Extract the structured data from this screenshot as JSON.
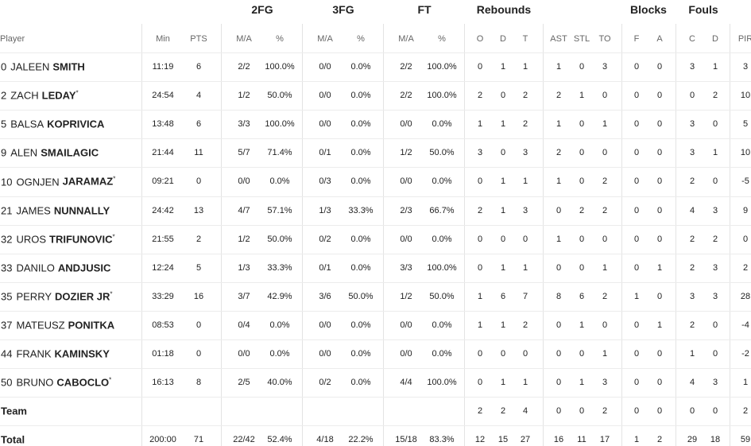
{
  "headers": {
    "groups": [
      "2FG",
      "3FG",
      "FT",
      "Rebounds",
      "Blocks",
      "Fouls"
    ],
    "player": "Player",
    "columns": [
      "Min",
      "PTS",
      "M/A",
      "%",
      "M/A",
      "%",
      "M/A",
      "%",
      "O",
      "D",
      "T",
      "AST",
      "STL",
      "TO",
      "F",
      "A",
      "C",
      "D",
      "PIR"
    ]
  },
  "rows": [
    {
      "number": "0",
      "first": "JALEEN",
      "last": "SMITH",
      "cells": [
        "11:19",
        "6",
        "2/2",
        "100.0%",
        "0/0",
        "0.0%",
        "2/2",
        "100.0%",
        "0",
        "1",
        "1",
        "1",
        "0",
        "3",
        "0",
        "0",
        "3",
        "1",
        "3"
      ]
    },
    {
      "number": "2",
      "first": "ZACH",
      "last": "LEDAY",
      "mark": "*",
      "cells": [
        "24:54",
        "4",
        "1/2",
        "50.0%",
        "0/0",
        "0.0%",
        "2/2",
        "100.0%",
        "2",
        "0",
        "2",
        "2",
        "1",
        "0",
        "0",
        "0",
        "0",
        "2",
        "10"
      ]
    },
    {
      "number": "5",
      "first": "BALSA",
      "last": "KOPRIVICA",
      "cells": [
        "13:48",
        "6",
        "3/3",
        "100.0%",
        "0/0",
        "0.0%",
        "0/0",
        "0.0%",
        "1",
        "1",
        "2",
        "1",
        "0",
        "1",
        "0",
        "0",
        "3",
        "0",
        "5"
      ]
    },
    {
      "number": "9",
      "first": "ALEN",
      "last": "SMAILAGIC",
      "cells": [
        "21:44",
        "11",
        "5/7",
        "71.4%",
        "0/1",
        "0.0%",
        "1/2",
        "50.0%",
        "3",
        "0",
        "3",
        "2",
        "0",
        "0",
        "0",
        "0",
        "3",
        "1",
        "10"
      ]
    },
    {
      "number": "10",
      "first": "OGNJEN",
      "last": "JARAMAZ",
      "mark": "*",
      "cells": [
        "09:21",
        "0",
        "0/0",
        "0.0%",
        "0/3",
        "0.0%",
        "0/0",
        "0.0%",
        "0",
        "1",
        "1",
        "1",
        "0",
        "2",
        "0",
        "0",
        "2",
        "0",
        "-5"
      ]
    },
    {
      "number": "21",
      "first": "JAMES",
      "last": "NUNNALLY",
      "cells": [
        "24:42",
        "13",
        "4/7",
        "57.1%",
        "1/3",
        "33.3%",
        "2/3",
        "66.7%",
        "2",
        "1",
        "3",
        "0",
        "2",
        "2",
        "0",
        "0",
        "4",
        "3",
        "9"
      ]
    },
    {
      "number": "32",
      "first": "UROS",
      "last": "TRIFUNOVIC",
      "mark": "*",
      "cells": [
        "21:55",
        "2",
        "1/2",
        "50.0%",
        "0/2",
        "0.0%",
        "0/0",
        "0.0%",
        "0",
        "0",
        "0",
        "1",
        "0",
        "0",
        "0",
        "0",
        "2",
        "2",
        "0"
      ]
    },
    {
      "number": "33",
      "first": "DANILO",
      "last": "ANDJUSIC",
      "cells": [
        "12:24",
        "5",
        "1/3",
        "33.3%",
        "0/1",
        "0.0%",
        "3/3",
        "100.0%",
        "0",
        "1",
        "1",
        "0",
        "0",
        "1",
        "0",
        "1",
        "2",
        "3",
        "2"
      ]
    },
    {
      "number": "35",
      "first": "PERRY",
      "last": "DOZIER JR",
      "mark": "*",
      "cells": [
        "33:29",
        "16",
        "3/7",
        "42.9%",
        "3/6",
        "50.0%",
        "1/2",
        "50.0%",
        "1",
        "6",
        "7",
        "8",
        "6",
        "2",
        "1",
        "0",
        "3",
        "3",
        "28"
      ]
    },
    {
      "number": "37",
      "first": "MATEUSZ",
      "last": "PONITKA",
      "cells": [
        "08:53",
        "0",
        "0/4",
        "0.0%",
        "0/0",
        "0.0%",
        "0/0",
        "0.0%",
        "1",
        "1",
        "2",
        "0",
        "1",
        "0",
        "0",
        "1",
        "2",
        "0",
        "-4"
      ]
    },
    {
      "number": "44",
      "first": "FRANK",
      "last": "KAMINSKY",
      "cells": [
        "01:18",
        "0",
        "0/0",
        "0.0%",
        "0/0",
        "0.0%",
        "0/0",
        "0.0%",
        "0",
        "0",
        "0",
        "0",
        "0",
        "1",
        "0",
        "0",
        "1",
        "0",
        "-2"
      ]
    },
    {
      "number": "50",
      "first": "BRUNO",
      "last": "CABOCLO",
      "mark": "*",
      "cells": [
        "16:13",
        "8",
        "2/5",
        "40.0%",
        "0/2",
        "0.0%",
        "4/4",
        "100.0%",
        "0",
        "1",
        "1",
        "0",
        "1",
        "3",
        "0",
        "0",
        "4",
        "3",
        "1"
      ]
    }
  ],
  "team": {
    "label": "Team",
    "cells": [
      "2",
      "2",
      "4",
      "0",
      "0",
      "2",
      "0",
      "0",
      "0",
      "0",
      "2"
    ]
  },
  "total": {
    "label": "Total",
    "cells": [
      "200:00",
      "71",
      "22/42",
      "52.4%",
      "4/18",
      "22.2%",
      "15/18",
      "83.3%",
      "12",
      "15",
      "27",
      "16",
      "11",
      "17",
      "1",
      "2",
      "29",
      "18",
      "59"
    ]
  }
}
